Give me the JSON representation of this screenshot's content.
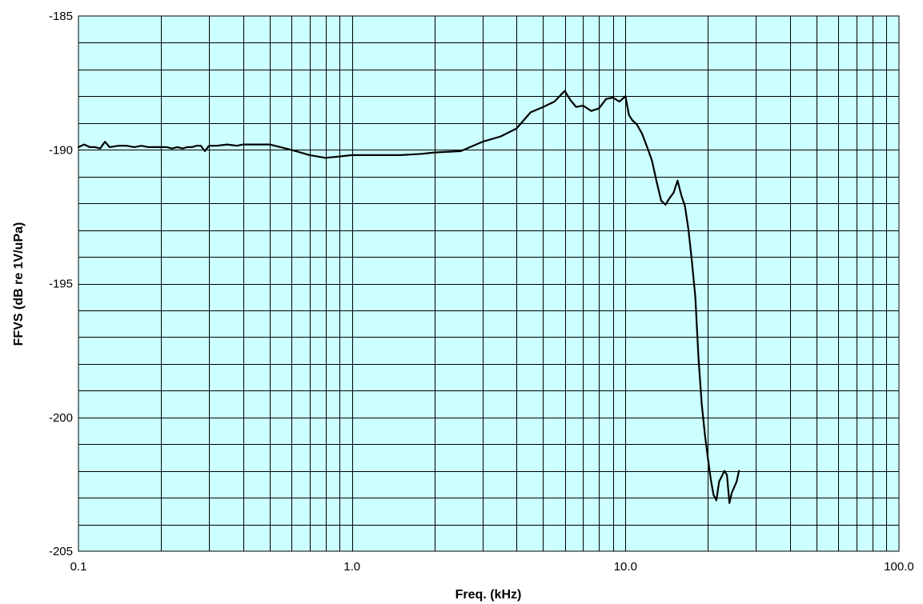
{
  "chart_data": {
    "type": "line",
    "title": "",
    "xlabel": "Freq. (kHz)",
    "ylabel": "FFVS (dB re 1V/uPa)",
    "x_scale": "log",
    "xlim": [
      0.1,
      100
    ],
    "ylim": [
      -205,
      -185
    ],
    "x_tick_values": [
      0.1,
      1,
      10,
      100
    ],
    "x_tick_labels": [
      "0.1",
      "1.0",
      "10.0",
      "100.0"
    ],
    "y_tick_values": [
      -185,
      -190,
      -195,
      -200,
      -205
    ],
    "y_tick_labels": [
      "-185",
      "-190",
      "-195",
      "-200",
      "-205"
    ],
    "grid": true,
    "y_minor_step": 1,
    "legend": "none",
    "colors": {
      "plot_background": "#ccffff",
      "grid": "#000000",
      "line": "#000000"
    },
    "series": [
      {
        "x": [
          0.1,
          0.105,
          0.11,
          0.115,
          0.12,
          0.125,
          0.13,
          0.14,
          0.15,
          0.16,
          0.17,
          0.18,
          0.19,
          0.2,
          0.21,
          0.22,
          0.23,
          0.24,
          0.25,
          0.26,
          0.27,
          0.28,
          0.29,
          0.3,
          0.32,
          0.35,
          0.38,
          0.4,
          0.45,
          0.5,
          0.6,
          0.7,
          0.8,
          0.9,
          1.0,
          1.2,
          1.5,
          1.8,
          2.0,
          2.5,
          3.0,
          3.5,
          4.0,
          4.5,
          5.0,
          5.5,
          5.8,
          6.0,
          6.3,
          6.6,
          7.0,
          7.5,
          8.0,
          8.5,
          9.0,
          9.5,
          10.0,
          10.3,
          10.6,
          11.0,
          11.5,
          12.0,
          12.5,
          13.0,
          13.5,
          14.0,
          14.5,
          15.0,
          15.5,
          16.0,
          16.5,
          17.0,
          17.5,
          18.0,
          18.5,
          19.0,
          19.5,
          20.0,
          20.5,
          21.0,
          21.5,
          22.0,
          22.5,
          23.0,
          23.5,
          24.0,
          24.5,
          25.0,
          25.5,
          26.0
        ],
        "y": [
          -189.9,
          -189.8,
          -189.9,
          -189.9,
          -189.95,
          -189.7,
          -189.9,
          -189.85,
          -189.85,
          -189.9,
          -189.85,
          -189.9,
          -189.9,
          -189.9,
          -189.9,
          -189.95,
          -189.9,
          -189.95,
          -189.9,
          -189.9,
          -189.85,
          -189.85,
          -190.05,
          -189.85,
          -189.85,
          -189.8,
          -189.85,
          -189.8,
          -189.8,
          -189.8,
          -190.0,
          -190.2,
          -190.3,
          -190.25,
          -190.2,
          -190.2,
          -190.2,
          -190.15,
          -190.1,
          -190.05,
          -189.7,
          -189.5,
          -189.2,
          -188.6,
          -188.4,
          -188.2,
          -187.95,
          -187.8,
          -188.15,
          -188.4,
          -188.35,
          -188.55,
          -188.45,
          -188.1,
          -188.05,
          -188.2,
          -188.0,
          -188.7,
          -188.9,
          -189.05,
          -189.4,
          -189.9,
          -190.4,
          -191.2,
          -191.9,
          -192.05,
          -191.8,
          -191.6,
          -191.15,
          -191.7,
          -192.1,
          -193.0,
          -194.2,
          -195.5,
          -197.8,
          -199.5,
          -200.6,
          -201.5,
          -202.3,
          -202.9,
          -203.1,
          -202.4,
          -202.2,
          -202.0,
          -202.15,
          -203.2,
          -202.8,
          -202.6,
          -202.4,
          -202.0
        ]
      }
    ]
  }
}
